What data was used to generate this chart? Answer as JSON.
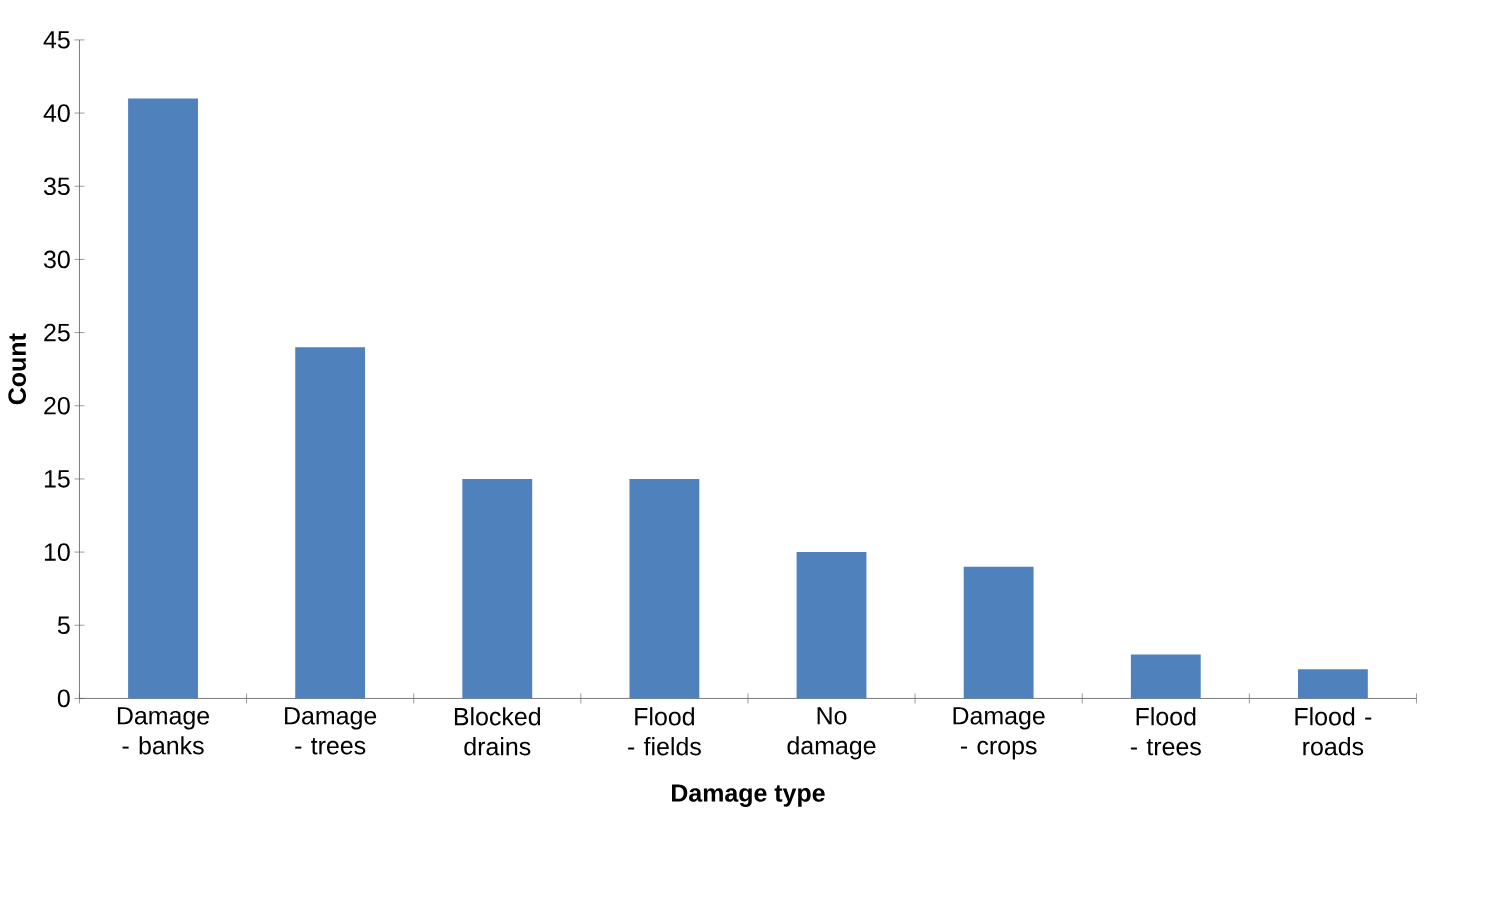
{
  "chart_data": {
    "type": "bar",
    "categories": [
      "Damage - banks",
      "Damage - trees",
      "Blocked drains",
      "Flood - fields",
      "No damage",
      "Damage - crops",
      "Flood - trees",
      "Flood - roads"
    ],
    "values": [
      41,
      24,
      15,
      15,
      10,
      9,
      3,
      2
    ],
    "color": "#4f81bd",
    "xlabel": "Damage type",
    "ylabel": "Count",
    "ylim": [
      0,
      45
    ],
    "yticks": [
      0,
      5,
      10,
      15,
      20,
      25,
      30,
      35,
      40,
      45
    ],
    "grid": false
  }
}
